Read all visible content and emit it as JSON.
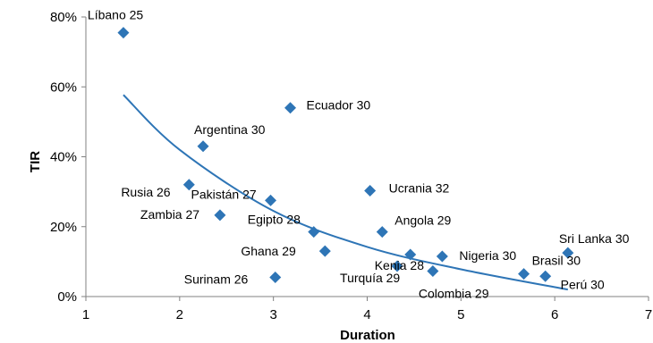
{
  "chart_data": {
    "type": "scatter",
    "title": "",
    "xlabel": "Duration",
    "ylabel": "TIR",
    "xlim": [
      1,
      7
    ],
    "ylim": [
      0,
      0.8
    ],
    "x_ticks": [
      "1",
      "2",
      "3",
      "4",
      "5",
      "6",
      "7"
    ],
    "y_ticks": [
      "0%",
      "20%",
      "40%",
      "60%",
      "80%"
    ],
    "grid": false,
    "legend": "none",
    "marker_color": "#2E75B6",
    "trendline_color": "#2E75B6",
    "points": [
      {
        "label": "Líbano 25",
        "x": 1.4,
        "y": 0.755
      },
      {
        "label": "Ecuador 30",
        "x": 3.18,
        "y": 0.54
      },
      {
        "label": "Argentina 30",
        "x": 2.25,
        "y": 0.43
      },
      {
        "label": "Rusia 26",
        "x": 2.1,
        "y": 0.32
      },
      {
        "label": "Pakistán 27",
        "x": 2.97,
        "y": 0.275
      },
      {
        "label": "Zambia 27",
        "x": 2.43,
        "y": 0.233
      },
      {
        "label": "Ucrania 32",
        "x": 4.03,
        "y": 0.303
      },
      {
        "label": "Egipto 28",
        "x": 3.43,
        "y": 0.185
      },
      {
        "label": "Angola 29",
        "x": 4.16,
        "y": 0.185
      },
      {
        "label": "Ghana 29",
        "x": 3.55,
        "y": 0.13
      },
      {
        "label": "Kenia 28",
        "x": 4.46,
        "y": 0.12
      },
      {
        "label": "Nigeria 30",
        "x": 4.8,
        "y": 0.115
      },
      {
        "label": "Surinam 26",
        "x": 3.02,
        "y": 0.055
      },
      {
        "label": "Turquía 29",
        "x": 4.32,
        "y": 0.087
      },
      {
        "label": "Colombia 29",
        "x": 4.7,
        "y": 0.073
      },
      {
        "label": "Brasil 30",
        "x": 5.67,
        "y": 0.065
      },
      {
        "label": "Perú 30",
        "x": 5.9,
        "y": 0.058
      },
      {
        "label": "Sri Lanka 30",
        "x": 6.14,
        "y": 0.125
      }
    ],
    "trendline": {
      "type": "power",
      "points": [
        {
          "x": 1.4,
          "y": 0.577
        },
        {
          "x": 2.0,
          "y": 0.42
        },
        {
          "x": 3.0,
          "y": 0.245
        },
        {
          "x": 4.0,
          "y": 0.142
        },
        {
          "x": 5.0,
          "y": 0.078
        },
        {
          "x": 6.14,
          "y": 0.02
        }
      ]
    }
  }
}
